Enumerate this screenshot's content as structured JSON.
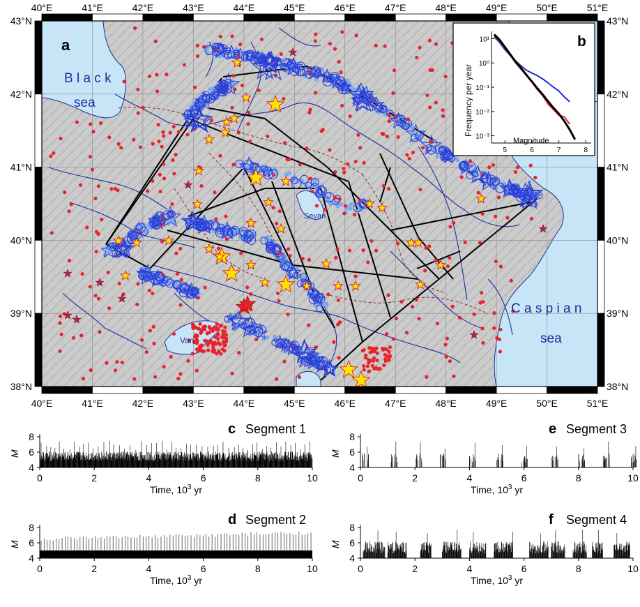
{
  "panel_a": {
    "label": "a",
    "lon_ticks": [
      "40°E",
      "41°E",
      "42°E",
      "43°E",
      "44°E",
      "45°E",
      "46°E",
      "47°E",
      "48°E",
      "49°E",
      "50°E",
      "51°E"
    ],
    "lat_ticks": [
      "43°N",
      "42°N",
      "41°N",
      "40°N",
      "39°N",
      "38°N"
    ],
    "water_labels": {
      "black_1": "B l a c k",
      "black_2": "sea",
      "caspian_1": "C a s p i a n",
      "caspian_2": "sea",
      "sevan": "Sevan",
      "van": "Van"
    },
    "colors": {
      "water": "#c6e6f7",
      "land": "#c9c9c9",
      "rivers": "#1f2c9c",
      "catalog_dots": "#e8222a",
      "synthetic_events": "#2a3fd8",
      "synthetic_light": "#7aa9ee",
      "historic_stars": "#ffe400",
      "star_outline": "#d81b1b",
      "fault_lines": "#000000"
    }
  },
  "panel_b": {
    "label": "b",
    "ylabel": "Frequency per year",
    "xlabel": "Magnitude",
    "xticks": [
      "5",
      "6",
      "7",
      "8"
    ],
    "yticks": [
      "10¹",
      "10⁰",
      "10⁻¹",
      "10⁻²",
      "10⁻³"
    ]
  },
  "chart_data": [
    {
      "type": "line",
      "panel": "b",
      "xlabel": "Magnitude",
      "ylabel": "Frequency per year",
      "yscale": "log",
      "xlim": [
        4.5,
        8.2
      ],
      "ylim": [
        0.0005,
        20
      ],
      "series": [
        {
          "color": "#000000",
          "x": [
            4.6,
            4.8,
            5.0,
            5.2,
            5.4,
            5.6,
            5.8,
            6.0,
            6.2,
            6.4,
            6.6,
            6.8,
            7.0,
            7.2,
            7.4,
            7.6
          ],
          "y": [
            15,
            9,
            4.5,
            2.2,
            1.1,
            0.6,
            0.32,
            0.17,
            0.09,
            0.05,
            0.026,
            0.014,
            0.008,
            0.004,
            0.0018,
            0.0007
          ]
        },
        {
          "color": "#e8222a",
          "x": [
            4.6,
            4.8,
            5.0,
            5.2,
            5.4,
            5.6,
            5.8,
            6.0,
            6.2,
            6.4,
            6.6,
            6.8,
            7.0,
            7.2,
            7.4
          ],
          "y": [
            14,
            8,
            4.0,
            2.0,
            1.0,
            0.55,
            0.3,
            0.16,
            0.08,
            0.045,
            0.02,
            0.012,
            0.007,
            0.006,
            0.003
          ]
        },
        {
          "color": "#1d2ad6",
          "x": [
            4.6,
            4.8,
            5.0,
            5.2,
            5.4,
            5.6,
            5.8,
            6.0,
            6.2,
            6.4,
            6.6,
            6.8,
            7.0,
            7.2,
            7.4
          ],
          "y": [
            12,
            7,
            3.5,
            2.0,
            1.2,
            0.75,
            0.5,
            0.38,
            0.3,
            0.22,
            0.15,
            0.1,
            0.07,
            0.04,
            0.025
          ]
        }
      ]
    },
    {
      "type": "bar",
      "panel": "c",
      "title": "Segment 1",
      "xlabel": "Time, 10³ yr",
      "ylabel": "M",
      "xlim": [
        0,
        10
      ],
      "ylim": [
        4,
        8
      ],
      "pattern": "dense continuous activity M 4-6 with frequent spikes to 6.5-7.5"
    },
    {
      "type": "bar",
      "panel": "d",
      "title": "Segment 2",
      "xlabel": "Time, 10³ yr",
      "ylabel": "M",
      "xlim": [
        0,
        10
      ],
      "ylim": [
        4,
        8
      ],
      "pattern": "continuous band near M 4.5-5 with regular spikes to about 7, increasing toward 10"
    },
    {
      "type": "bar",
      "panel": "e",
      "title": "Segment 3",
      "xlabel": "Time, 10³ yr",
      "ylabel": "M",
      "xlim": [
        0,
        10
      ],
      "ylim": [
        4,
        8
      ],
      "clusters": [
        0.05,
        1.1,
        2.0,
        2.9,
        4.0,
        5.0,
        5.9,
        7.0,
        8.0,
        8.9,
        9.9
      ]
    },
    {
      "type": "bar",
      "panel": "f",
      "title": "Segment 4",
      "xlabel": "Time, 10³ yr",
      "ylabel": "M",
      "xlim": [
        0,
        10
      ],
      "ylim": [
        4,
        8
      ],
      "pattern": "intermittent bursts of activity M 4-6.5 with occasional M 7-8 events"
    }
  ],
  "timeseries": [
    {
      "letter": "c",
      "title": "Segment 1",
      "ylabel": "M",
      "yticks": [
        "8",
        "6",
        "4"
      ],
      "xticks": [
        "0",
        "2",
        "4",
        "6",
        "8",
        "10"
      ],
      "xlabel_main": "Time, 10",
      "xlabel_sup": "3",
      "xlabel_end": " yr"
    },
    {
      "letter": "d",
      "title": "Segment 2",
      "ylabel": "M",
      "yticks": [
        "8",
        "6",
        "4"
      ],
      "xticks": [
        "0",
        "2",
        "4",
        "6",
        "8",
        "10"
      ],
      "xlabel_main": "Time, 10",
      "xlabel_sup": "3",
      "xlabel_end": " yr"
    },
    {
      "letter": "e",
      "title": "Segment 3",
      "ylabel": "M",
      "yticks": [
        "8",
        "6",
        "4"
      ],
      "xticks": [
        "0",
        "2",
        "4",
        "6",
        "8",
        "10"
      ],
      "xlabel_main": "Time, 10",
      "xlabel_sup": "3",
      "xlabel_end": " yr"
    },
    {
      "letter": "f",
      "title": "Segment 4",
      "ylabel": "M",
      "yticks": [
        "8",
        "6",
        "4"
      ],
      "xticks": [
        "0",
        "2",
        "4",
        "6",
        "8",
        "10"
      ],
      "xlabel_main": "Time, 10",
      "xlabel_sup": "3",
      "xlabel_end": " yr"
    }
  ]
}
